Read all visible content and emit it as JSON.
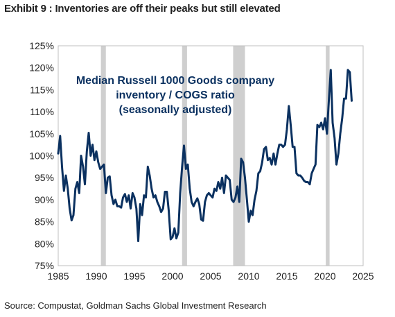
{
  "title": "Exhibit 9 : Inventories are off their peaks but still elevated",
  "source": "Source: Compustat, Goldman Sachs Global Investment Research",
  "chart_data": {
    "type": "line",
    "title": "Exhibit 9 : Inventories are off their peaks but still elevated",
    "xlabel": "",
    "ylabel": "",
    "xlim": [
      1985,
      2025
    ],
    "ylim": [
      75,
      125
    ],
    "x_ticks": [
      1985,
      1990,
      1995,
      2000,
      2005,
      2010,
      2015,
      2020,
      2025
    ],
    "y_ticks": [
      75,
      80,
      85,
      90,
      95,
      100,
      105,
      110,
      115,
      120,
      125
    ],
    "y_tick_labels": [
      "75%",
      "80%",
      "85%",
      "90%",
      "95%",
      "100%",
      "105%",
      "110%",
      "115%",
      "120%",
      "125%"
    ],
    "grid": false,
    "annotation": [
      "Median Russell 1000 Goods company",
      "inventory / COGS ratio",
      "(seasonally adjusted)"
    ],
    "recession_shading": [
      [
        1990.6,
        1991.25
      ],
      [
        2001.25,
        2001.9
      ],
      [
        2007.95,
        2009.5
      ],
      [
        2020.1,
        2020.6
      ]
    ],
    "line_color": "#0b3160",
    "shade_color": "#cfcfcf",
    "series": [
      {
        "values": [
          [
            1985.0,
            100.5
          ],
          [
            1985.25,
            104.5
          ],
          [
            1985.5,
            97.5
          ],
          [
            1985.75,
            92
          ],
          [
            1986.0,
            95.5
          ],
          [
            1986.25,
            92.5
          ],
          [
            1986.5,
            88
          ],
          [
            1986.75,
            85.3
          ],
          [
            1987.0,
            86.5
          ],
          [
            1987.25,
            92.5
          ],
          [
            1987.5,
            94
          ],
          [
            1987.75,
            91.5
          ],
          [
            1988.0,
            100
          ],
          [
            1988.25,
            97.5
          ],
          [
            1988.5,
            93.5
          ],
          [
            1988.75,
            101
          ],
          [
            1989.0,
            105.2
          ],
          [
            1989.25,
            100
          ],
          [
            1989.5,
            102.5
          ],
          [
            1989.75,
            99
          ],
          [
            1990.0,
            101
          ],
          [
            1990.25,
            98.5
          ],
          [
            1990.5,
            97
          ],
          [
            1990.75,
            97.5
          ],
          [
            1991.0,
            98
          ],
          [
            1991.25,
            91.5
          ],
          [
            1991.5,
            95
          ],
          [
            1991.75,
            95.3
          ],
          [
            1992.0,
            91
          ],
          [
            1992.25,
            89
          ],
          [
            1992.5,
            90
          ],
          [
            1992.75,
            88.5
          ],
          [
            1993.0,
            88.5
          ],
          [
            1993.25,
            88.2
          ],
          [
            1993.5,
            90.5
          ],
          [
            1993.75,
            91.3
          ],
          [
            1994.0,
            89.5
          ],
          [
            1994.25,
            91
          ],
          [
            1994.5,
            88
          ],
          [
            1994.75,
            91.5
          ],
          [
            1995.0,
            90.5
          ],
          [
            1995.25,
            88
          ],
          [
            1995.5,
            80.6
          ],
          [
            1995.75,
            89
          ],
          [
            1996.0,
            86.5
          ],
          [
            1996.25,
            91
          ],
          [
            1996.5,
            90.5
          ],
          [
            1996.75,
            97.5
          ],
          [
            1997.0,
            95.5
          ],
          [
            1997.25,
            92.5
          ],
          [
            1997.5,
            90.5
          ],
          [
            1997.75,
            91
          ],
          [
            1998.0,
            89.5
          ],
          [
            1998.25,
            88.5
          ],
          [
            1998.5,
            87.2
          ],
          [
            1998.75,
            88
          ],
          [
            1999.0,
            91.8
          ],
          [
            1999.25,
            91.8
          ],
          [
            1999.5,
            87.5
          ],
          [
            1999.75,
            81
          ],
          [
            2000.0,
            81.5
          ],
          [
            2000.25,
            83.5
          ],
          [
            2000.5,
            81.2
          ],
          [
            2000.75,
            82.5
          ],
          [
            2001.0,
            91.5
          ],
          [
            2001.25,
            97.5
          ],
          [
            2001.5,
            102.3
          ],
          [
            2001.75,
            97
          ],
          [
            2002.0,
            98
          ],
          [
            2002.25,
            92.5
          ],
          [
            2002.5,
            89.5
          ],
          [
            2002.75,
            88.5
          ],
          [
            2003.0,
            89.5
          ],
          [
            2003.25,
            90.3
          ],
          [
            2003.5,
            89
          ],
          [
            2003.75,
            85.5
          ],
          [
            2004.0,
            85.2
          ],
          [
            2004.25,
            89.5
          ],
          [
            2004.5,
            91
          ],
          [
            2004.75,
            91.5
          ],
          [
            2005.0,
            91
          ],
          [
            2005.25,
            90.5
          ],
          [
            2005.5,
            92.5
          ],
          [
            2005.75,
            92
          ],
          [
            2006.0,
            94
          ],
          [
            2006.25,
            92.5
          ],
          [
            2006.5,
            95
          ],
          [
            2006.75,
            91.5
          ],
          [
            2007.0,
            95.5
          ],
          [
            2007.25,
            95
          ],
          [
            2007.5,
            94.5
          ],
          [
            2007.75,
            90
          ],
          [
            2008.0,
            89.5
          ],
          [
            2008.25,
            90.5
          ],
          [
            2008.5,
            93
          ],
          [
            2008.75,
            89.5
          ],
          [
            2009.0,
            99.3
          ],
          [
            2009.25,
            98.5
          ],
          [
            2009.5,
            95
          ],
          [
            2009.75,
            90
          ],
          [
            2010.0,
            85
          ],
          [
            2010.25,
            87.5
          ],
          [
            2010.5,
            86.5
          ],
          [
            2010.75,
            90
          ],
          [
            2011.0,
            92
          ],
          [
            2011.25,
            96
          ],
          [
            2011.5,
            96.5
          ],
          [
            2011.75,
            98.5
          ],
          [
            2012.0,
            101.5
          ],
          [
            2012.25,
            102
          ],
          [
            2012.5,
            99
          ],
          [
            2012.75,
            99.5
          ],
          [
            2013.0,
            98
          ],
          [
            2013.25,
            100.5
          ],
          [
            2013.5,
            98
          ],
          [
            2013.75,
            100.5
          ],
          [
            2014.0,
            102.5
          ],
          [
            2014.25,
            102.5
          ],
          [
            2014.5,
            102
          ],
          [
            2014.75,
            102.5
          ],
          [
            2015.0,
            106
          ],
          [
            2015.25,
            111.3
          ],
          [
            2015.5,
            107
          ],
          [
            2015.75,
            102
          ],
          [
            2016.0,
            102
          ],
          [
            2016.25,
            96
          ],
          [
            2016.5,
            95.5
          ],
          [
            2016.75,
            95.5
          ],
          [
            2017.0,
            95
          ],
          [
            2017.25,
            94.3
          ],
          [
            2017.5,
            94
          ],
          [
            2017.75,
            94
          ],
          [
            2018.0,
            93.5
          ],
          [
            2018.25,
            96
          ],
          [
            2018.5,
            97
          ],
          [
            2018.75,
            98
          ],
          [
            2019.0,
            107
          ],
          [
            2019.25,
            106.5
          ],
          [
            2019.5,
            107.5
          ],
          [
            2019.75,
            106
          ],
          [
            2020.0,
            108.5
          ],
          [
            2020.25,
            105
          ],
          [
            2020.5,
            112.5
          ],
          [
            2020.75,
            119.5
          ],
          [
            2021.0,
            107.5
          ],
          [
            2021.25,
            104
          ],
          [
            2021.5,
            98
          ],
          [
            2021.75,
            100.5
          ],
          [
            2022.0,
            105
          ],
          [
            2022.25,
            108.5
          ],
          [
            2022.5,
            113
          ],
          [
            2022.75,
            113
          ],
          [
            2023.0,
            119.5
          ],
          [
            2023.25,
            119
          ],
          [
            2023.5,
            112.5
          ]
        ]
      }
    ]
  }
}
